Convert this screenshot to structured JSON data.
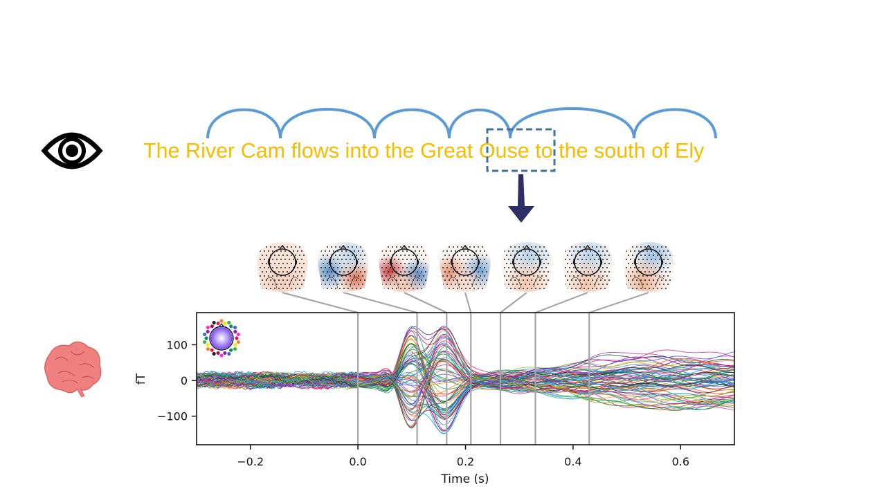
{
  "sentence": {
    "words": [
      "The",
      "River",
      "Cam",
      "flows",
      "into",
      "the",
      "Great",
      "Ouse",
      "to",
      "the",
      "south",
      "of",
      "Ely"
    ],
    "highlighted_word": "Ouse",
    "color": "#f5bc00"
  },
  "colors": {
    "text": "#f5bc00",
    "arcs": "#5b9bd5",
    "highlight_box": "#41719c",
    "arrow": "#2e2e66",
    "brain": "#f08080",
    "connector": "#a6a6a6"
  },
  "icons": {
    "eye": "eye-icon",
    "brain": "brain-icon",
    "arrow": "down-arrow-icon",
    "sensor_legend": "sensor-color-legend-icon"
  },
  "topomaps": [
    {
      "time": 0.0,
      "pattern": "weak-red"
    },
    {
      "time": 0.11,
      "pattern": "blue-left-red-right"
    },
    {
      "time": 0.165,
      "pattern": "red-left-blue-right"
    },
    {
      "time": 0.21,
      "pattern": "red-left-blue-right-weak"
    },
    {
      "time": 0.265,
      "pattern": "weak-blue-top-red-bottom"
    },
    {
      "time": 0.33,
      "pattern": "weak-blue-top-red-bottom"
    },
    {
      "time": 0.43,
      "pattern": "blue-top-red-bottom"
    }
  ],
  "chart_data": {
    "type": "line",
    "xlabel": "Time (s)",
    "ylabel": "fT",
    "xlim": [
      -0.3,
      0.7
    ],
    "ylim": [
      -180,
      190
    ],
    "xticks": [
      -0.2,
      0.0,
      0.2,
      0.4,
      0.6
    ],
    "xtick_labels": [
      "−0.2",
      "0.0",
      "0.2",
      "0.4",
      "0.6"
    ],
    "yticks": [
      100,
      0,
      -100
    ],
    "ytick_labels": [
      "100",
      "0",
      "−100"
    ],
    "marker_times": [
      0.0,
      0.11,
      0.165,
      0.21,
      0.265,
      0.33,
      0.43
    ],
    "series_description": "many overlapping sensor traces colored by sensor location",
    "series_envelope": {
      "x": [
        -0.3,
        0.0,
        0.06,
        0.1,
        0.14,
        0.2,
        0.3,
        0.5,
        0.7
      ],
      "upper": [
        30,
        30,
        90,
        155,
        170,
        90,
        50,
        70,
        70
      ],
      "lower": [
        -40,
        -30,
        -80,
        -140,
        -160,
        -100,
        -70,
        -110,
        -130
      ]
    },
    "grid": false
  }
}
